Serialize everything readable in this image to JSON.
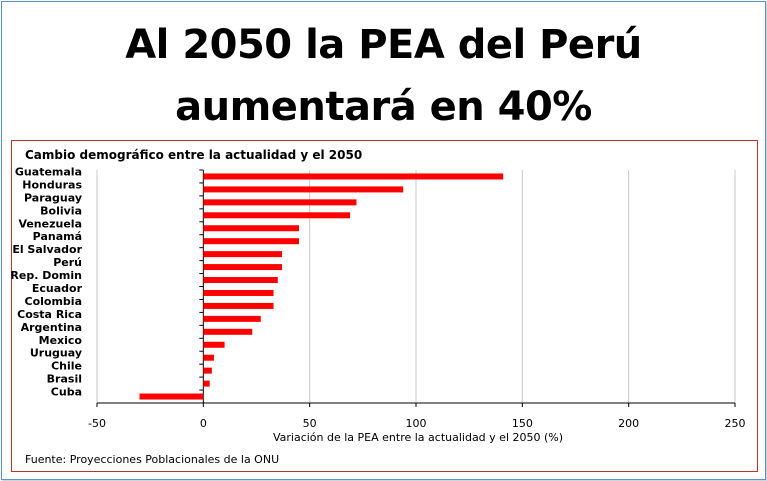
{
  "header": {
    "title_line1": "Al 2050 la PEA del Perú",
    "title_line2": "aumentará en 40%"
  },
  "chart_data": {
    "type": "bar",
    "orientation": "horizontal",
    "title": "Cambio demográfico entre la actualidad y el 2050",
    "xlabel": "Variación de la PEA entre la actualidad y el 2050 (%)",
    "ylabel": "",
    "xlim": [
      -50,
      250
    ],
    "xticks": [
      -50,
      0,
      50,
      100,
      150,
      200,
      250
    ],
    "grid": true,
    "bar_color": "#ff0000",
    "categories": [
      "Guatemala",
      "Honduras",
      "Paraguay",
      "Bolivia",
      "Venezuela",
      "Panamá",
      "El Salvador",
      "Perú",
      "Rep. Domin",
      "Ecuador",
      "Colombia",
      "Costa Rica",
      "Argentina",
      "Mexico",
      "Uruguay",
      "Chile",
      "Brasil",
      "Cuba"
    ],
    "values": [
      141,
      94,
      72,
      69,
      45,
      45,
      37,
      37,
      35,
      33,
      33,
      27,
      23,
      10,
      5,
      4,
      3,
      -30
    ],
    "source": "Fuente: Proyecciones Poblacionales de la ONU"
  }
}
